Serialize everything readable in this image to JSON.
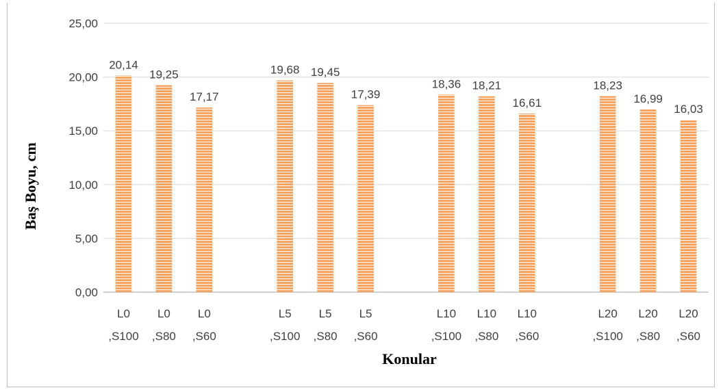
{
  "chart_data": {
    "type": "bar",
    "title": "",
    "xlabel": "Konular",
    "ylabel": "Baş Boyu, cm",
    "ylim": [
      0,
      25
    ],
    "yticks": [
      "0,00",
      "5,00",
      "10,00",
      "15,00",
      "20,00",
      "25,00"
    ],
    "grid": true,
    "legend": "none",
    "bar_color": "#f4a460",
    "bar_stripe_color": "#ffffff",
    "groups": [
      {
        "categories": [
          [
            "L0",
            ",S100"
          ],
          [
            "L0",
            ",S80"
          ],
          [
            "L0",
            ",S60"
          ]
        ],
        "values": [
          20.14,
          19.25,
          17.17
        ],
        "labels": [
          "20,14",
          "19,25",
          "17,17"
        ]
      },
      {
        "categories": [
          [
            "L5",
            ",S100"
          ],
          [
            "L5",
            ",S80"
          ],
          [
            "L5",
            ",S60"
          ]
        ],
        "values": [
          19.68,
          19.45,
          17.39
        ],
        "labels": [
          "19,68",
          "19,45",
          "17,39"
        ]
      },
      {
        "categories": [
          [
            "L10",
            ",S100"
          ],
          [
            "L10",
            ",S80"
          ],
          [
            "L10",
            ",S60"
          ]
        ],
        "values": [
          18.36,
          18.21,
          16.61
        ],
        "labels": [
          "18,36",
          "18,21",
          "16,61"
        ]
      },
      {
        "categories": [
          [
            "L20",
            ",S100"
          ],
          [
            "L20",
            ",S80"
          ],
          [
            "L20",
            ",S60"
          ]
        ],
        "values": [
          18.23,
          16.99,
          16.03
        ],
        "labels": [
          "18,23",
          "16,99",
          "16,03"
        ]
      }
    ]
  }
}
